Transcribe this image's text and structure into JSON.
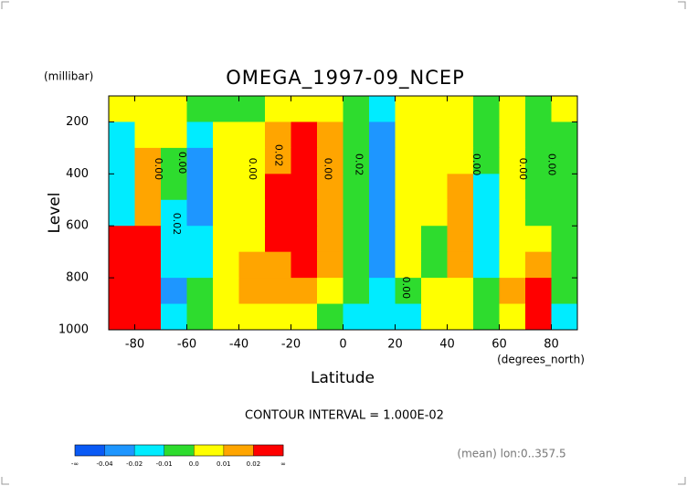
{
  "chart_data": {
    "type": "contour",
    "title": "OMEGA_1997-09_NCEP",
    "y_units": "(millibar)",
    "y_label": "Level",
    "x_label": "Latitude",
    "x_units": "(degrees_north)",
    "contour_interval": "CONTOUR INTERVAL = 1.000E-02",
    "footnote": "(mean) lon:0..357.5",
    "xlim": [
      -90,
      90
    ],
    "xticks": [
      -80,
      -60,
      -40,
      -20,
      0,
      20,
      40,
      60,
      80
    ],
    "ylim": [
      1000,
      100
    ],
    "yticks": [
      200,
      400,
      600,
      800,
      1000
    ],
    "x": [
      -85,
      -75,
      -65,
      -55,
      -45,
      -35,
      -25,
      -15,
      -5,
      5,
      15,
      25,
      35,
      45,
      55,
      65,
      75,
      85
    ],
    "y": [
      150,
      250,
      350,
      450,
      550,
      650,
      750,
      850,
      950
    ],
    "z": [
      [
        0.005,
        0.005,
        0.005,
        -0.005,
        -0.005,
        -0.005,
        0.005,
        0.005,
        0.005,
        -0.005,
        -0.015,
        0.005,
        0.005,
        0.005,
        -0.005,
        0.005,
        -0.005,
        0.005
      ],
      [
        -0.015,
        0.005,
        0.005,
        -0.015,
        0.005,
        0.005,
        0.015,
        0.025,
        0.015,
        -0.005,
        -0.03,
        0.005,
        0.005,
        0.005,
        -0.005,
        0.005,
        -0.005,
        -0.005
      ],
      [
        -0.015,
        0.015,
        -0.005,
        -0.03,
        0.005,
        0.005,
        0.015,
        0.025,
        0.015,
        -0.005,
        -0.03,
        0.005,
        0.005,
        0.005,
        -0.005,
        0.005,
        -0.005,
        -0.005
      ],
      [
        -0.015,
        0.015,
        -0.005,
        -0.03,
        0.005,
        0.005,
        0.025,
        0.025,
        0.015,
        -0.005,
        -0.03,
        0.005,
        0.005,
        0.015,
        -0.015,
        0.005,
        -0.005,
        -0.005
      ],
      [
        -0.015,
        0.015,
        -0.015,
        -0.03,
        0.005,
        0.005,
        0.025,
        0.025,
        0.015,
        -0.005,
        -0.03,
        0.005,
        0.005,
        0.015,
        -0.015,
        0.005,
        -0.005,
        -0.005
      ],
      [
        0.025,
        0.025,
        -0.015,
        -0.015,
        0.005,
        0.005,
        0.025,
        0.025,
        0.015,
        -0.005,
        -0.03,
        0.005,
        -0.005,
        0.015,
        -0.015,
        0.005,
        0.005,
        -0.005
      ],
      [
        0.025,
        0.025,
        -0.015,
        -0.015,
        0.005,
        0.015,
        0.015,
        0.025,
        0.015,
        -0.005,
        -0.03,
        0.005,
        -0.005,
        0.015,
        -0.015,
        0.005,
        0.015,
        -0.005
      ],
      [
        0.025,
        0.025,
        -0.03,
        -0.005,
        0.005,
        0.015,
        0.015,
        0.015,
        0.005,
        -0.005,
        -0.015,
        -0.005,
        0.005,
        0.005,
        -0.005,
        0.015,
        0.025,
        -0.005
      ],
      [
        0.025,
        0.025,
        -0.015,
        -0.005,
        0.005,
        0.005,
        0.005,
        0.005,
        -0.005,
        -0.015,
        -0.015,
        -0.015,
        0.005,
        0.005,
        -0.005,
        0.005,
        0.025,
        -0.015
      ]
    ],
    "contour_labels": [
      {
        "text": "0.00",
        "lat": -71,
        "level": 381
      },
      {
        "text": "0.00",
        "lat": -62,
        "level": 357
      },
      {
        "text": "0.02",
        "lat": -64,
        "level": 592
      },
      {
        "text": "0.00",
        "lat": -35,
        "level": 381
      },
      {
        "text": "0.02",
        "lat": -25,
        "level": 329
      },
      {
        "text": "0.00",
        "lat": -6,
        "level": 381
      },
      {
        "text": "0.02",
        "lat": 6,
        "level": 364
      },
      {
        "text": "0.00",
        "lat": 24,
        "level": 838
      },
      {
        "text": "0.00",
        "lat": 51,
        "level": 364
      },
      {
        "text": "0.00",
        "lat": 69,
        "level": 381
      },
      {
        "text": "0.00",
        "lat": 80,
        "level": 364
      }
    ],
    "colorbar": {
      "low_label": "-∞",
      "high_label": "∞",
      "levels": [
        -0.04,
        -0.02,
        -0.01,
        {
          "value": 0,
          "label": "0.0"
        },
        0.01,
        0.02
      ],
      "colors": [
        "#0a5af5",
        "#1e96ff",
        "#00ecff",
        "#2edc2e",
        "#ffff00",
        "#ffa500",
        "#ff0000"
      ]
    }
  }
}
